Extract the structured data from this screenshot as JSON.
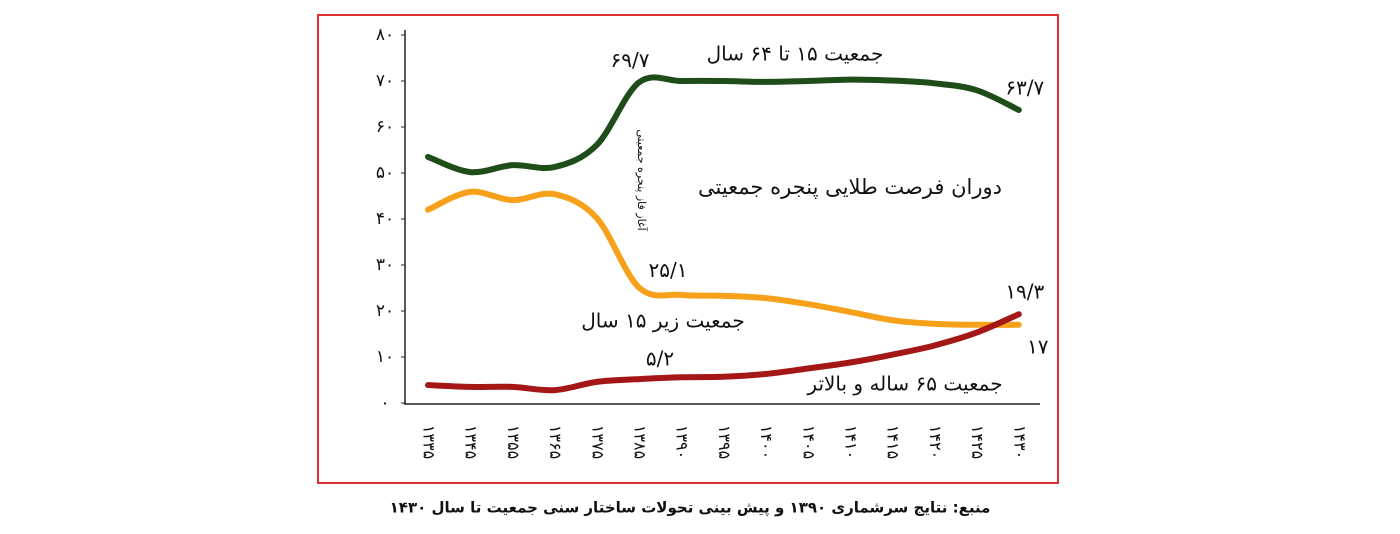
{
  "chart_data": {
    "type": "line",
    "caption": "منبع: نتایج سرشماری ۱۳۹۰ و پیش بینی تحولات ساختار سنی جمعیت تا سال ۱۴۳۰",
    "annotations": [
      "دوران فرصت طلایی پنجره جمعیتی",
      "آغاز فاز پنجره جمعیتی"
    ],
    "categories": [
      "۱۳۳۵",
      "۱۳۴۵",
      "۱۳۵۵",
      "۱۳۶۵",
      "۱۳۷۵",
      "۱۳۸۵",
      "۱۳۹۰",
      "۱۳۹۵",
      "۱۴۰۰",
      "۱۴۰۵",
      "۱۴۱۰",
      "۱۴۱۵",
      "۱۴۲۰",
      "۱۴۲۵",
      "۱۴۳۰"
    ],
    "series": [
      {
        "name": "جمعیت ۱۵ تا ۶۴ سال",
        "color": "#1e4d1a",
        "values": [
          53.5,
          50.2,
          51.7,
          51.3,
          56.1,
          69.7,
          70,
          70,
          69.8,
          70,
          70.3,
          70.1,
          69.5,
          68,
          63.7
        ],
        "value_labels": [
          null,
          null,
          null,
          null,
          null,
          "۶۹/۷",
          null,
          null,
          null,
          null,
          null,
          null,
          null,
          null,
          "۶۳/۷"
        ]
      },
      {
        "name": "جمعیت زیر ۱۵ سال",
        "color": "#f7a11a",
        "values": [
          42,
          45.9,
          44.1,
          45.4,
          40.2,
          25.1,
          23.5,
          23.3,
          22.8,
          21.5,
          19.8,
          18,
          17.2,
          17,
          17
        ],
        "value_labels": [
          null,
          null,
          null,
          null,
          null,
          "۲۵/۱",
          null,
          null,
          null,
          null,
          null,
          null,
          null,
          null,
          "۱۷"
        ]
      },
      {
        "name": "جمعیت ۶۵ ساله و بالاتر",
        "color": "#a51616",
        "values": [
          3.9,
          3.5,
          3.5,
          2.8,
          4.6,
          5.2,
          5.6,
          5.7,
          6.3,
          7.5,
          8.8,
          10.5,
          12.5,
          15.3,
          19.3
        ],
        "value_labels": [
          null,
          null,
          null,
          null,
          null,
          "۵/۲",
          null,
          null,
          null,
          null,
          null,
          null,
          null,
          null,
          "۱۹/۳"
        ]
      }
    ],
    "ylim": [
      0,
      80
    ],
    "yticks": [
      {
        "value": 0,
        "label": "۰"
      },
      {
        "value": 10,
        "label": "۱۰"
      },
      {
        "value": 20,
        "label": "۲۰"
      },
      {
        "value": 30,
        "label": "۳۰"
      },
      {
        "value": 40,
        "label": "۴۰"
      },
      {
        "value": 50,
        "label": "۵۰"
      },
      {
        "value": 60,
        "label": "۶۰"
      },
      {
        "value": 70,
        "label": "۷۰"
      },
      {
        "value": 80,
        "label": "۸۰"
      }
    ],
    "grid": false
  }
}
